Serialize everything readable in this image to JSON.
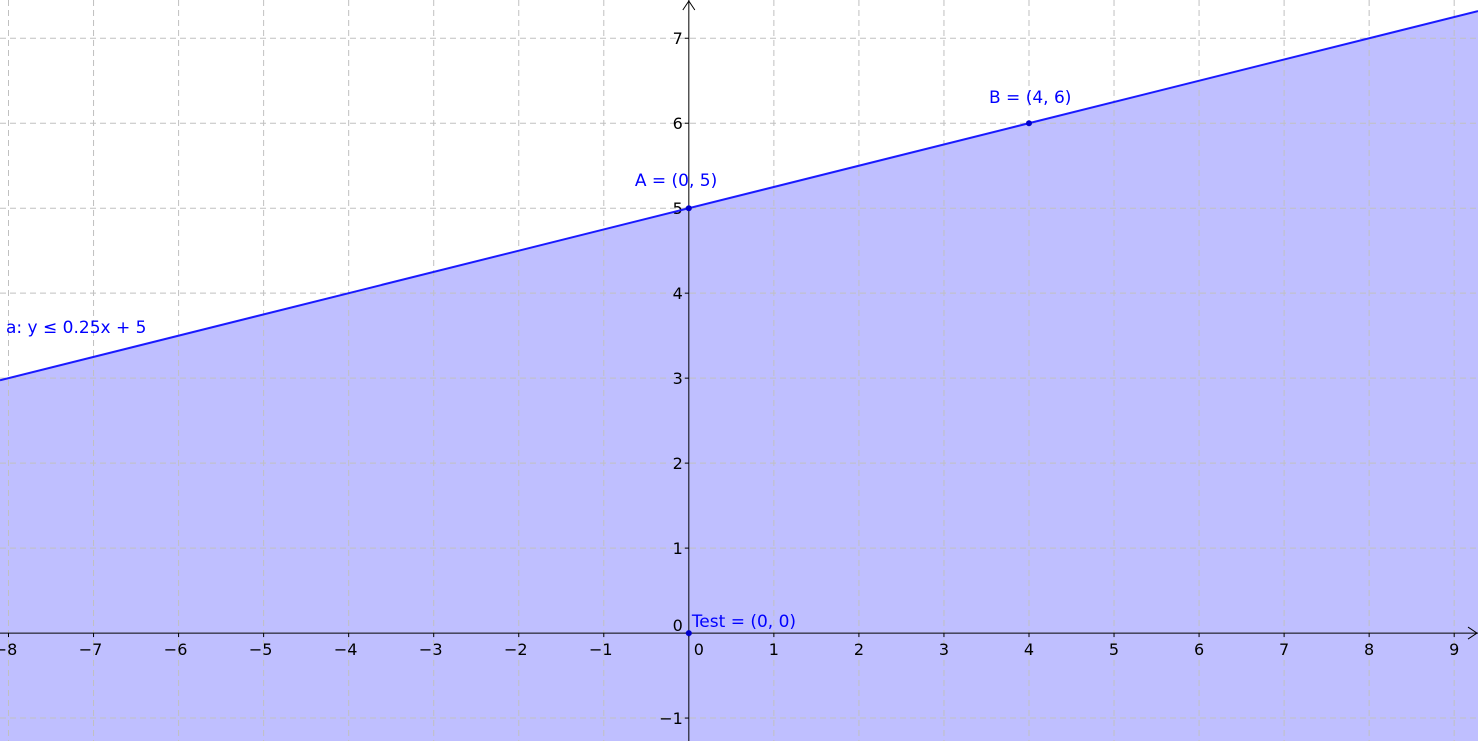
{
  "chart_data": {
    "type": "line",
    "grid": true,
    "xlim": [
      -8.1,
      9.28
    ],
    "ylim": [
      -1.27,
      7.45
    ],
    "x_ticks": [
      -8,
      -7,
      -6,
      -5,
      -4,
      -3,
      -2,
      -1,
      0,
      1,
      2,
      3,
      4,
      5,
      6,
      7,
      8,
      9
    ],
    "y_ticks": [
      -1,
      0,
      1,
      2,
      3,
      4,
      5,
      6,
      7
    ],
    "inequality": {
      "label": "a: y ≤ 0.25x + 5",
      "slope": 0.25,
      "intercept": 5,
      "shade": "below"
    },
    "points": [
      {
        "name": "A",
        "label": "A = (0, 5)",
        "x": 0,
        "y": 5
      },
      {
        "name": "B",
        "label": "B = (4, 6)",
        "x": 4,
        "y": 6
      },
      {
        "name": "Test",
        "label": "Test = (0, 0)",
        "x": 0,
        "y": 0
      }
    ]
  },
  "colors": {
    "fill": "#bfbfff",
    "line": "#1a1aff",
    "label": "#0000ff",
    "point": "#0000cc",
    "grid": "#c0c0c0",
    "axis": "#000000"
  }
}
